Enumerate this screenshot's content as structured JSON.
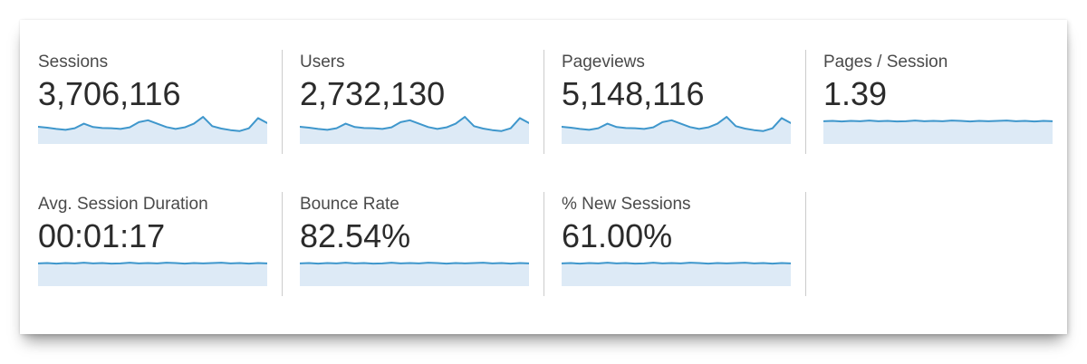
{
  "colors": {
    "spark_line": "#3f97cc",
    "spark_fill": "#ddeaf6",
    "divider": "#cccccc",
    "label": "#4a4a4a",
    "value": "#2b2b2b",
    "card_background": "#ffffff"
  },
  "metrics": [
    {
      "label": "Sessions",
      "value": "3,706,116",
      "spark_type": "area",
      "spark": [
        0.56,
        0.53,
        0.49,
        0.46,
        0.51,
        0.66,
        0.55,
        0.52,
        0.51,
        0.49,
        0.54,
        0.71,
        0.77,
        0.66,
        0.55,
        0.49,
        0.54,
        0.66,
        0.88,
        0.58,
        0.5,
        0.45,
        0.42,
        0.51,
        0.84,
        0.68
      ]
    },
    {
      "label": "Users",
      "value": "2,732,130",
      "spark_type": "area",
      "spark": [
        0.56,
        0.53,
        0.49,
        0.46,
        0.51,
        0.66,
        0.55,
        0.52,
        0.51,
        0.49,
        0.54,
        0.71,
        0.77,
        0.66,
        0.55,
        0.49,
        0.54,
        0.66,
        0.88,
        0.58,
        0.5,
        0.45,
        0.42,
        0.51,
        0.84,
        0.68
      ]
    },
    {
      "label": "Pageviews",
      "value": "5,148,116",
      "spark_type": "area",
      "spark": [
        0.56,
        0.53,
        0.49,
        0.46,
        0.51,
        0.66,
        0.55,
        0.52,
        0.51,
        0.49,
        0.54,
        0.71,
        0.77,
        0.66,
        0.55,
        0.49,
        0.54,
        0.66,
        0.88,
        0.58,
        0.5,
        0.45,
        0.42,
        0.51,
        0.84,
        0.68
      ]
    },
    {
      "label": "Pages / Session",
      "value": "1.39",
      "spark_type": "area",
      "spark": [
        0.74,
        0.75,
        0.73,
        0.75,
        0.74,
        0.76,
        0.74,
        0.75,
        0.73,
        0.74,
        0.76,
        0.74,
        0.75,
        0.74,
        0.76,
        0.75,
        0.73,
        0.75,
        0.74,
        0.75,
        0.76,
        0.74,
        0.75,
        0.73,
        0.75,
        0.74
      ]
    },
    {
      "label": "Avg. Session Duration",
      "value": "00:01:17",
      "spark_type": "area",
      "spark": [
        0.74,
        0.75,
        0.73,
        0.75,
        0.74,
        0.76,
        0.74,
        0.75,
        0.73,
        0.74,
        0.76,
        0.74,
        0.75,
        0.74,
        0.76,
        0.75,
        0.73,
        0.75,
        0.74,
        0.75,
        0.76,
        0.74,
        0.75,
        0.73,
        0.75,
        0.74
      ]
    },
    {
      "label": "Bounce Rate",
      "value": "82.54%",
      "spark_type": "area",
      "spark": [
        0.74,
        0.75,
        0.73,
        0.75,
        0.74,
        0.76,
        0.74,
        0.75,
        0.73,
        0.74,
        0.76,
        0.74,
        0.75,
        0.74,
        0.76,
        0.75,
        0.73,
        0.75,
        0.74,
        0.75,
        0.76,
        0.74,
        0.75,
        0.73,
        0.75,
        0.74
      ]
    },
    {
      "label": "% New Sessions",
      "value": "61.00%",
      "spark_type": "area",
      "spark": [
        0.74,
        0.75,
        0.73,
        0.75,
        0.74,
        0.76,
        0.74,
        0.75,
        0.73,
        0.74,
        0.76,
        0.74,
        0.75,
        0.74,
        0.76,
        0.75,
        0.73,
        0.75,
        0.74,
        0.75,
        0.76,
        0.74,
        0.75,
        0.73,
        0.75,
        0.74
      ]
    }
  ]
}
